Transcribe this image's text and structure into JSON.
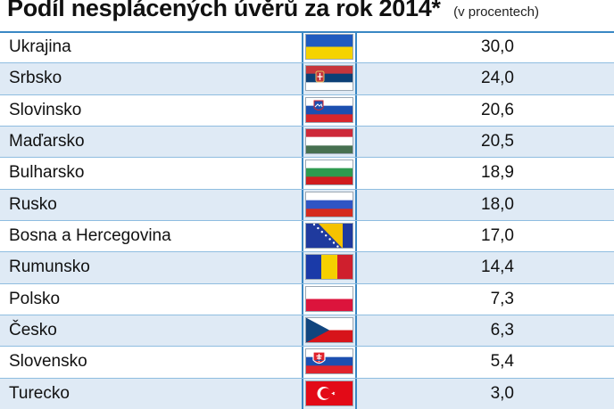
{
  "header": {
    "title": "Podíl nesplácených úvěrů za rok 2014*",
    "subtitle": "(v procentech)"
  },
  "chart_data": {
    "type": "table",
    "title": "Podíl nesplácených úvěrů za rok 2014*",
    "subtitle": "(v procentech)",
    "rows": [
      {
        "country": "Ukrajina",
        "value": "30,0",
        "flag": "ukraine-flag-icon"
      },
      {
        "country": "Srbsko",
        "value": "24,0",
        "flag": "serbia-flag-icon"
      },
      {
        "country": "Slovinsko",
        "value": "20,6",
        "flag": "slovenia-flag-icon"
      },
      {
        "country": "Maďarsko",
        "value": "20,5",
        "flag": "hungary-flag-icon"
      },
      {
        "country": "Bulharsko",
        "value": "18,9",
        "flag": "bulgaria-flag-icon"
      },
      {
        "country": "Rusko",
        "value": "18,0",
        "flag": "russia-flag-icon"
      },
      {
        "country": "Bosna a Hercegovina",
        "value": "17,0",
        "flag": "bosnia-flag-icon"
      },
      {
        "country": "Rumunsko",
        "value": "14,4",
        "flag": "romania-flag-icon"
      },
      {
        "country": "Polsko",
        "value": "7,3",
        "flag": "poland-flag-icon"
      },
      {
        "country": "Česko",
        "value": "6,3",
        "flag": "czechia-flag-icon"
      },
      {
        "country": "Slovensko",
        "value": "5,4",
        "flag": "slovakia-flag-icon"
      },
      {
        "country": "Turecko",
        "value": "3,0",
        "flag": "turkey-flag-icon"
      }
    ]
  },
  "colors": {
    "row_stripe": "#dfeaf5",
    "rule": "#3a88c4"
  }
}
